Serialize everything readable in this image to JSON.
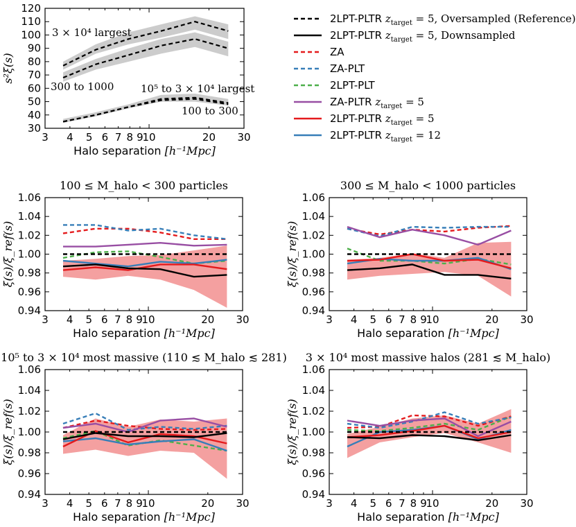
{
  "colors": {
    "black": "#000000",
    "red": "#e41a1c",
    "blue": "#377eb8",
    "green": "#4daf4a",
    "purple": "#984ea3",
    "band_red": "#f4a0a0",
    "band_gray": "#cccccc"
  },
  "legend": [
    {
      "key": "ref",
      "label_main": "2LPT-PLTR ",
      "label_math": "z",
      "label_sub": "target",
      "label_after": " = 5, Oversampled (Reference)",
      "color": "#000000",
      "dash": true
    },
    {
      "key": "down",
      "label_main": "2LPT-PLTR ",
      "label_math": "z",
      "label_sub": "target",
      "label_after": " = 5, Downsampled",
      "color": "#000000",
      "dash": false
    },
    {
      "key": "za",
      "label_main": "ZA",
      "label_math": "",
      "label_sub": "",
      "label_after": "",
      "color": "#e41a1c",
      "dash": true
    },
    {
      "key": "zapl",
      "label_main": "ZA-PLT",
      "label_math": "",
      "label_sub": "",
      "label_after": "",
      "color": "#377eb8",
      "dash": true
    },
    {
      "key": "lpt",
      "label_main": "2LPT-PLT",
      "label_math": "",
      "label_sub": "",
      "label_after": "",
      "color": "#4daf4a",
      "dash": true
    },
    {
      "key": "zapltr",
      "label_main": "ZA-PLTR ",
      "label_math": "z",
      "label_sub": "target",
      "label_after": " = 5",
      "color": "#984ea3",
      "dash": false
    },
    {
      "key": "lpt5",
      "label_main": "2LPT-PLTR ",
      "label_math": "z",
      "label_sub": "target",
      "label_after": " = 5",
      "color": "#e41a1c",
      "dash": false
    },
    {
      "key": "lpt12",
      "label_main": "2LPT-PLTR ",
      "label_math": "z",
      "label_sub": "target",
      "label_after": " = 12",
      "color": "#377eb8",
      "dash": false
    }
  ],
  "chart_data": [
    {
      "id": "top",
      "type": "line",
      "title": "",
      "xlabel_text": "Halo separation ",
      "xlabel_math": "[h⁻¹Mpc]",
      "ylabel_math": "s²ξ(s)",
      "xscale": "log",
      "xlim": [
        3,
        30
      ],
      "ylim": [
        30,
        120
      ],
      "xticks": [
        3,
        10,
        30
      ],
      "xtick_labels": [
        "3",
        "10",
        "30"
      ],
      "xminor": [
        4,
        5,
        6,
        7,
        8,
        9,
        20
      ],
      "xminor_labels": [
        "4",
        "5",
        "6",
        "7",
        "8",
        "9",
        "20"
      ],
      "yticks": [
        30,
        40,
        50,
        60,
        70,
        80,
        90,
        100,
        110,
        120
      ],
      "ytick_labels": [
        "30",
        "40",
        "50",
        "60",
        "70",
        "80",
        "90",
        "100",
        "110",
        "120"
      ],
      "x": [
        3.7,
        5.4,
        7.9,
        11.5,
        17.0,
        25.0
      ],
      "bands": [
        {
          "lo": [
            74,
            86,
            93,
            98,
            104,
            97
          ],
          "hi": [
            80,
            93,
            102,
            108,
            114,
            108
          ]
        },
        {
          "lo": [
            65,
            74,
            80,
            86,
            91,
            84
          ],
          "hi": [
            72,
            82,
            90,
            97,
            102,
            95
          ]
        },
        {
          "lo": [
            34,
            39,
            45,
            50,
            50,
            47
          ],
          "hi": [
            37,
            42,
            48,
            55,
            56,
            52
          ]
        }
      ],
      "series": [
        {
          "name": "3×10⁴ largest",
          "values": [
            77,
            89,
            97,
            103,
            110,
            103
          ]
        },
        {
          "name": "300 to 1000",
          "values": [
            68,
            78,
            85,
            92,
            97,
            90
          ]
        },
        {
          "name": "10⁵ to 3×10⁴ largest",
          "values": [
            35,
            40,
            46,
            52,
            53,
            49
          ]
        },
        {
          "name": "100 to 300",
          "values": [
            35,
            40,
            46,
            51,
            52,
            48
          ]
        }
      ],
      "annotations": [
        "3 × 10⁴ largest",
        "300 to 1000",
        "10⁵ to 3 × 10⁴ largest",
        "100 to 300"
      ]
    },
    {
      "id": "p1",
      "type": "line",
      "title": "100 ≤ M_halo < 300 particles",
      "xlabel_text": "Halo separation ",
      "xlabel_math": "[h⁻¹Mpc]",
      "ylabel_math": "ξ(s)/ξ_ref(s)",
      "xscale": "log",
      "xlim": [
        3,
        30
      ],
      "ylim": [
        0.94,
        1.06
      ],
      "xticks": [
        3,
        10,
        30
      ],
      "xtick_labels": [
        "3",
        "10",
        "30"
      ],
      "xminor": [
        4,
        5,
        6,
        7,
        8,
        9,
        20
      ],
      "xminor_labels": [
        "4",
        "5",
        "6",
        "7",
        "8",
        "9",
        "20"
      ],
      "yticks": [
        0.94,
        0.96,
        0.98,
        1.0,
        1.02,
        1.04,
        1.06
      ],
      "ytick_labels": [
        "0.94",
        "0.96",
        "0.98",
        "1.00",
        "1.02",
        "1.04",
        "1.06"
      ],
      "x": [
        3.7,
        5.4,
        7.9,
        11.5,
        17.0,
        25.0
      ],
      "band": {
        "lo": [
          0.976,
          0.973,
          0.977,
          0.973,
          0.962,
          0.943
        ],
        "hi": [
          0.993,
          0.995,
          0.998,
          0.999,
          1.004,
          1.009
        ]
      },
      "series": [
        {
          "key": "ref",
          "values": [
            1.0,
            1.0,
            1.0,
            1.0,
            1.0,
            1.0
          ]
        },
        {
          "key": "down",
          "values": [
            0.987,
            0.989,
            0.985,
            0.984,
            0.976,
            0.978
          ]
        },
        {
          "key": "za",
          "values": [
            1.022,
            1.027,
            1.027,
            1.023,
            1.016,
            1.016
          ]
        },
        {
          "key": "zapl",
          "values": [
            1.031,
            1.031,
            1.025,
            1.027,
            1.02,
            1.016
          ]
        },
        {
          "key": "lpt",
          "values": [
            0.996,
            1.002,
            1.003,
            0.997,
            0.99,
            0.993
          ]
        },
        {
          "key": "zapltr",
          "values": [
            1.008,
            1.008,
            1.01,
            1.012,
            1.009,
            1.01
          ]
        },
        {
          "key": "lpt5",
          "values": [
            0.983,
            0.986,
            0.983,
            0.989,
            0.989,
            0.984
          ]
        },
        {
          "key": "lpt12",
          "values": [
            0.993,
            0.99,
            0.987,
            0.992,
            0.99,
            0.994
          ]
        }
      ]
    },
    {
      "id": "p2",
      "type": "line",
      "title": "300 ≤ M_halo < 1000 particles",
      "xlabel_text": "Halo separation ",
      "xlabel_math": "[h⁻¹Mpc]",
      "ylabel_math": "ξ(s)/ξ_ref(s)",
      "xscale": "log",
      "xlim": [
        3,
        30
      ],
      "ylim": [
        0.94,
        1.06
      ],
      "xticks": [
        3,
        10,
        30
      ],
      "xtick_labels": [
        "3",
        "10",
        "30"
      ],
      "xminor": [
        4,
        5,
        6,
        7,
        8,
        9,
        20
      ],
      "xminor_labels": [
        "4",
        "5",
        "6",
        "7",
        "8",
        "9",
        "20"
      ],
      "yticks": [
        0.94,
        0.96,
        0.98,
        1.0,
        1.02,
        1.04,
        1.06
      ],
      "ytick_labels": [
        "0.94",
        "0.96",
        "0.98",
        "1.00",
        "1.02",
        "1.04",
        "1.06"
      ],
      "x": [
        3.7,
        5.4,
        7.9,
        11.5,
        17.0,
        25.0
      ],
      "band": {
        "lo": [
          0.973,
          0.977,
          0.979,
          0.981,
          0.977,
          0.955
        ],
        "hi": [
          0.994,
          0.996,
          1.001,
          0.996,
          1.012,
          1.013
        ]
      },
      "series": [
        {
          "key": "ref",
          "values": [
            1.0,
            1.0,
            1.0,
            1.0,
            1.0,
            1.0
          ]
        },
        {
          "key": "down",
          "values": [
            0.983,
            0.985,
            0.989,
            0.978,
            0.978,
            0.974
          ]
        },
        {
          "key": "za",
          "values": [
            1.027,
            1.021,
            1.026,
            1.024,
            1.028,
            1.03
          ]
        },
        {
          "key": "zapl",
          "values": [
            1.027,
            1.019,
            1.029,
            1.028,
            1.029,
            1.029
          ]
        },
        {
          "key": "lpt",
          "values": [
            1.006,
            0.993,
            0.993,
            0.99,
            0.995,
            0.989
          ]
        },
        {
          "key": "zapltr",
          "values": [
            1.029,
            1.018,
            1.026,
            1.02,
            1.01,
            1.025
          ]
        },
        {
          "key": "lpt5",
          "values": [
            0.993,
            0.994,
            1.0,
            0.993,
            0.994,
            0.985
          ]
        },
        {
          "key": "lpt12",
          "values": [
            0.99,
            0.995,
            0.993,
            0.993,
            0.996,
            0.984
          ]
        }
      ]
    },
    {
      "id": "p3",
      "type": "line",
      "title": "10⁵ to 3 × 10⁴ most massive (110 ≲ M_halo ≲ 281)",
      "xlabel_text": "Halo separation ",
      "xlabel_math": "[h⁻¹Mpc]",
      "ylabel_math": "ξ(s)/ξ_ref(s)",
      "xscale": "log",
      "xlim": [
        3,
        30
      ],
      "ylim": [
        0.94,
        1.06
      ],
      "xticks": [
        3,
        10,
        30
      ],
      "xtick_labels": [
        "3",
        "10",
        "30"
      ],
      "xminor": [
        4,
        5,
        6,
        7,
        8,
        9,
        20
      ],
      "xminor_labels": [
        "4",
        "5",
        "6",
        "7",
        "8",
        "9",
        "20"
      ],
      "yticks": [
        0.94,
        0.96,
        0.98,
        1.0,
        1.02,
        1.04,
        1.06
      ],
      "ytick_labels": [
        "0.94",
        "0.96",
        "0.98",
        "1.00",
        "1.02",
        "1.04",
        "1.06"
      ],
      "x": [
        3.7,
        5.4,
        7.9,
        11.5,
        17.0,
        25.0
      ],
      "band": {
        "lo": [
          0.979,
          0.983,
          0.977,
          0.982,
          0.98,
          0.955
        ],
        "hi": [
          0.997,
          1.013,
          1.005,
          1.012,
          1.01,
          1.013
        ]
      },
      "series": [
        {
          "key": "ref",
          "values": [
            1.0,
            1.0,
            1.0,
            1.0,
            1.0,
            1.0
          ]
        },
        {
          "key": "down",
          "values": [
            0.993,
            0.999,
            0.996,
            0.996,
            0.995,
            0.999
          ]
        },
        {
          "key": "za",
          "values": [
            1.004,
            1.011,
            1.006,
            1.003,
            1.002,
            1.003
          ]
        },
        {
          "key": "zapl",
          "values": [
            1.008,
            1.018,
            1.002,
            1.005,
            1.003,
            1.006
          ]
        },
        {
          "key": "lpt",
          "values": [
            0.994,
            1.001,
            0.987,
            0.992,
            0.987,
            0.982
          ]
        },
        {
          "key": "zapltr",
          "values": [
            1.004,
            1.008,
            1.0,
            1.011,
            1.013,
            1.005
          ]
        },
        {
          "key": "lpt5",
          "values": [
            0.986,
            1.001,
            0.99,
            0.998,
            0.996,
            0.989
          ]
        },
        {
          "key": "lpt12",
          "values": [
            0.991,
            0.994,
            0.988,
            0.991,
            0.993,
            0.982
          ]
        }
      ]
    },
    {
      "id": "p4",
      "type": "line",
      "title": "3 × 10⁴ most massive halos (281 ≲ M_halo)",
      "xlabel_text": "Halo separation ",
      "xlabel_math": "[h⁻¹Mpc]",
      "ylabel_math": "ξ(s)/ξ_ref(s)",
      "xscale": "log",
      "xlim": [
        3,
        30
      ],
      "ylim": [
        0.94,
        1.06
      ],
      "xticks": [
        3,
        10,
        30
      ],
      "xtick_labels": [
        "3",
        "10",
        "30"
      ],
      "xminor": [
        4,
        5,
        6,
        7,
        8,
        9,
        20
      ],
      "xminor_labels": [
        "4",
        "5",
        "6",
        "7",
        "8",
        "9",
        "20"
      ],
      "yticks": [
        0.94,
        0.96,
        0.98,
        1.0,
        1.02,
        1.04,
        1.06
      ],
      "ytick_labels": [
        "0.94",
        "0.96",
        "0.98",
        "1.00",
        "1.02",
        "1.04",
        "1.06"
      ],
      "x": [
        3.7,
        5.4,
        7.9,
        11.5,
        17.0,
        25.0
      ],
      "band": {
        "lo": [
          0.975,
          0.99,
          0.995,
          0.999,
          0.99,
          0.98
        ],
        "hi": [
          0.998,
          1.005,
          1.013,
          1.016,
          1.008,
          1.022
        ]
      },
      "series": [
        {
          "key": "ref",
          "values": [
            1.0,
            1.0,
            1.0,
            1.0,
            1.0,
            1.0
          ]
        },
        {
          "key": "down",
          "values": [
            0.995,
            0.994,
            0.997,
            0.996,
            0.992,
            0.997
          ]
        },
        {
          "key": "za",
          "values": [
            1.004,
            1.005,
            1.016,
            1.015,
            1.006,
            1.015
          ]
        },
        {
          "key": "zapl",
          "values": [
            1.008,
            1.004,
            1.01,
            1.019,
            1.008,
            1.014
          ]
        },
        {
          "key": "lpt",
          "values": [
            1.002,
            1.001,
            1.004,
            1.008,
            1.002,
            1.015
          ]
        },
        {
          "key": "zapltr",
          "values": [
            1.011,
            1.006,
            1.011,
            1.013,
            0.996,
            1.01
          ]
        },
        {
          "key": "lpt5",
          "values": [
            0.995,
            0.997,
            1.001,
            1.006,
            0.994,
            1.0
          ]
        },
        {
          "key": "lpt12",
          "values": [
            0.986,
            1.0,
            1.002,
            1.006,
            0.993,
            1.002
          ]
        }
      ]
    }
  ]
}
